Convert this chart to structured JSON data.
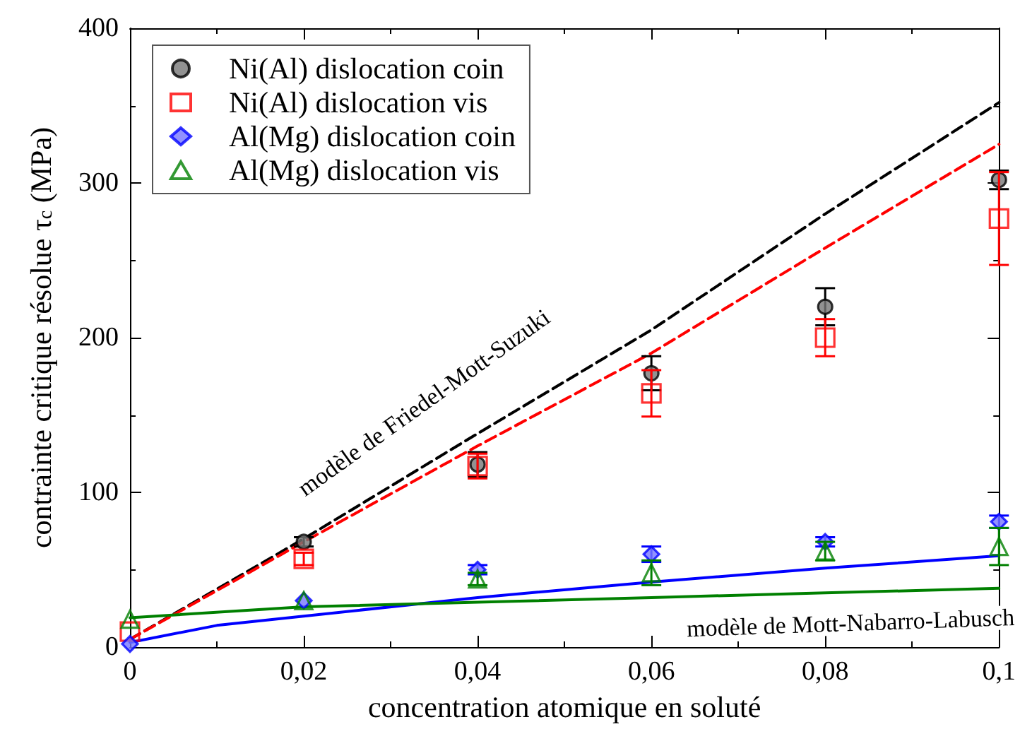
{
  "chart_data": {
    "type": "scatter",
    "xlabel": "concentration atomique en soluté",
    "ylabel": "contrainte critique résolue τ$_{c}$ (MPa)",
    "xlim": [
      0,
      0.1
    ],
    "ylim": [
      0,
      400
    ],
    "xticks": [
      0,
      {
        "value": 0.02,
        "label": "0,02"
      },
      {
        "value": 0.04,
        "label": "0,04"
      },
      {
        "value": 0.06,
        "label": "0,06"
      },
      {
        "value": 0.08,
        "label": "0,08"
      },
      {
        "value": 0.1,
        "label": "0,1"
      }
    ],
    "yticks": [
      0,
      100,
      200,
      300,
      400
    ],
    "grid": false,
    "legend": "top left",
    "series": [
      {
        "name": "Ni(Al) dislocation coin",
        "color": "#000000",
        "marker": "circle",
        "x": [
          0.02,
          0.04,
          0.06,
          0.08,
          0.1
        ],
        "values": [
          68,
          118,
          177,
          220,
          302
        ],
        "errors": [
          3,
          8,
          11,
          12,
          6
        ]
      },
      {
        "name": "Ni(Al) dislocation vis",
        "color": "#ff0000",
        "marker": "square",
        "x": [
          0,
          0.02,
          0.04,
          0.06,
          0.08,
          0.1
        ],
        "values": [
          10,
          57,
          117,
          164,
          200,
          277
        ],
        "errors": [
          null,
          4,
          8,
          15,
          12,
          30
        ]
      },
      {
        "name": "Al(Mg) dislocation coin",
        "color": "#0000ff",
        "marker": "diamond",
        "x": [
          0,
          0.02,
          0.04,
          0.06,
          0.08,
          0.1
        ],
        "values": [
          2,
          30,
          50,
          60,
          68,
          81
        ],
        "errors": [
          null,
          null,
          3,
          5,
          3,
          4
        ]
      },
      {
        "name": "Al(Mg) dislocation vis",
        "color": "#008000",
        "marker": "triangle",
        "x": [
          0,
          0.02,
          0.04,
          0.06,
          0.08,
          0.1
        ],
        "values": [
          18,
          30,
          44,
          48,
          62,
          65
        ],
        "errors": [
          null,
          null,
          4,
          8,
          6,
          12
        ]
      },
      {
        "type": "line",
        "color": "#000000",
        "line_style": "dashed",
        "x": [
          0,
          0.02,
          0.04,
          0.06,
          0.08,
          0.1
        ],
        "values": [
          5,
          70,
          138,
          205,
          280,
          352
        ]
      },
      {
        "type": "line",
        "color": "#ff0000",
        "line_style": "dashed",
        "x": [
          0,
          0.02,
          0.04,
          0.06,
          0.08,
          0.1
        ],
        "values": [
          5,
          68,
          130,
          190,
          258,
          325
        ]
      },
      {
        "type": "line",
        "color": "#0000ff",
        "line_style": "solid",
        "x": [
          0,
          0.01,
          0.02,
          0.04,
          0.06,
          0.08,
          0.1
        ],
        "values": [
          3,
          14,
          20,
          32,
          42,
          51,
          59
        ]
      },
      {
        "type": "line",
        "color": "#008000",
        "line_style": "solid",
        "x": [
          0,
          0.02,
          0.04,
          0.06,
          0.08,
          0.1
        ],
        "values": [
          19,
          26,
          29,
          32,
          35,
          38
        ]
      }
    ],
    "annotations": [
      "modèle de Friedel-Mott-Suzuki",
      "modèle de Mott-Nabarro-Labusch"
    ]
  }
}
